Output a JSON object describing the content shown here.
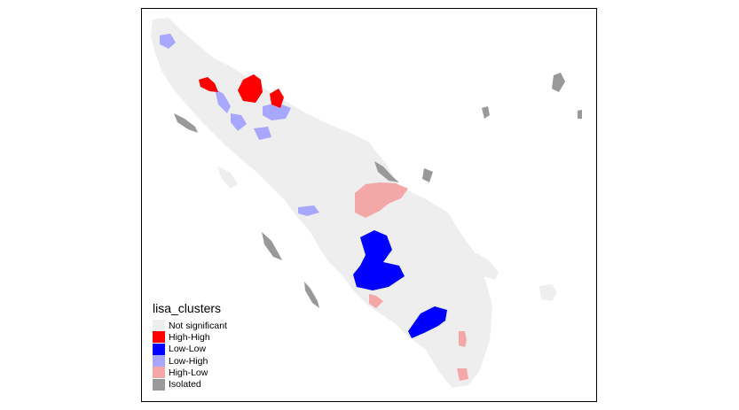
{
  "legend": {
    "title": "lisa_clusters",
    "entries": [
      {
        "label": "Not significant",
        "color": "#eeeeee"
      },
      {
        "label": "High-High",
        "color": "#ff0000"
      },
      {
        "label": "Low-Low",
        "color": "#0000ff"
      },
      {
        "label": "Low-High",
        "color": "#a7a7ff"
      },
      {
        "label": "High-Low",
        "color": "#f4a7a7"
      },
      {
        "label": "Isolated",
        "color": "#999999"
      }
    ]
  }
}
